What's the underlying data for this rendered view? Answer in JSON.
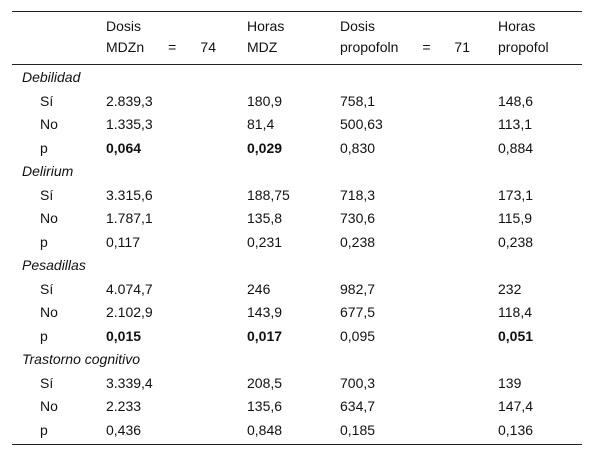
{
  "table": {
    "header": [
      {
        "lines": [
          "Dosis",
          "MDZn = 74"
        ]
      },
      {
        "lines": [
          "Horas",
          "MDZ"
        ]
      },
      {
        "lines": [
          "Dosis",
          "propofoln = 71"
        ]
      },
      {
        "lines": [
          "Horas",
          "propofol"
        ]
      }
    ],
    "groups": [
      {
        "name": "Debilidad",
        "rows": [
          {
            "label": "Sí",
            "cells": [
              "2.839,3",
              "180,9",
              "758,1",
              "148,6"
            ],
            "bold": []
          },
          {
            "label": "No",
            "cells": [
              "1.335,3",
              "81,4",
              "500,63",
              "113,1"
            ],
            "bold": []
          },
          {
            "label": "p",
            "cells": [
              "0,064",
              "0,029",
              "0,830",
              "0,884"
            ],
            "bold": [
              0,
              1
            ]
          }
        ]
      },
      {
        "name": "Delirium",
        "rows": [
          {
            "label": "Sí",
            "cells": [
              "3.315,6",
              "188,75",
              "718,3",
              "173,1"
            ],
            "bold": []
          },
          {
            "label": "No",
            "cells": [
              "1.787,1",
              "135,8",
              "730,6",
              "115,9"
            ],
            "bold": []
          },
          {
            "label": "p",
            "cells": [
              "0,117",
              "0,231",
              "0,238",
              "0,238"
            ],
            "bold": []
          }
        ]
      },
      {
        "name": "Pesadillas",
        "rows": [
          {
            "label": "Sí",
            "cells": [
              "4.074,7",
              "246",
              "982,7",
              "232"
            ],
            "bold": []
          },
          {
            "label": "No",
            "cells": [
              "2.102,9",
              "143,9",
              "677,5",
              "118,4"
            ],
            "bold": []
          },
          {
            "label": "p",
            "cells": [
              "0,015",
              "0,017",
              "0,095",
              "0,051"
            ],
            "bold": [
              0,
              1,
              3
            ]
          }
        ]
      },
      {
        "name": "Trastorno cognitivo",
        "rows": [
          {
            "label": "Sí",
            "cells": [
              "3.339,4",
              "208,5",
              "700,3",
              "139"
            ],
            "bold": []
          },
          {
            "label": "No",
            "cells": [
              "2.233",
              "135,6",
              "634,7",
              "147,4"
            ],
            "bold": []
          },
          {
            "label": "p",
            "cells": [
              "0,436",
              "0,848",
              "0,185",
              "0,136"
            ],
            "bold": []
          }
        ]
      }
    ]
  }
}
